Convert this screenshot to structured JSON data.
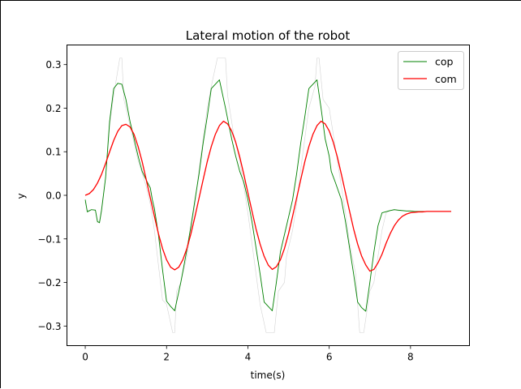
{
  "chart_data": {
    "type": "line",
    "title": "Lateral motion of the robot",
    "xlabel": "time(s)",
    "ylabel": "y",
    "xlim": [
      -0.45,
      9.45
    ],
    "ylim": [
      -0.345,
      0.345
    ],
    "xticks": [
      0,
      2,
      4,
      6,
      8
    ],
    "xtick_labels": [
      "0",
      "2",
      "4",
      "6",
      "8"
    ],
    "yticks": [
      -0.3,
      -0.2,
      -0.1,
      0.0,
      0.1,
      0.2,
      0.3
    ],
    "ytick_labels": [
      "−0.3",
      "−0.2",
      "−0.1",
      "0.0",
      "0.1",
      "0.2",
      "0.3"
    ],
    "grid": false,
    "legend_position": "top-right",
    "series": [
      {
        "name": "cop",
        "color": "#008000",
        "x": [
          0,
          0.05,
          0.15,
          0.25,
          0.3,
          0.35,
          0.4,
          0.5,
          0.6,
          0.7,
          0.8,
          0.9,
          1.0,
          1.1,
          1.2,
          1.3,
          1.4,
          1.5,
          1.6,
          1.65,
          1.7,
          1.8,
          1.9,
          2.0,
          2.1,
          2.2,
          2.35,
          2.5,
          2.6,
          2.7,
          2.8,
          2.9,
          3.0,
          3.1,
          3.2,
          3.3,
          3.45,
          3.6,
          3.7,
          3.8,
          3.9,
          4.0,
          4.1,
          4.2,
          4.3,
          4.4,
          4.5,
          4.6,
          4.7,
          4.8,
          4.95,
          5.1,
          5.2,
          5.3,
          5.4,
          5.5,
          5.6,
          5.7,
          5.8,
          5.9,
          6.0,
          6.05,
          6.15,
          6.3,
          6.4,
          6.5,
          6.6,
          6.7,
          6.8,
          6.9,
          7.0,
          7.1,
          7.2,
          7.3,
          7.5,
          7.6,
          7.7,
          7.8,
          7.9,
          8.0,
          8.1,
          8.2,
          8.4,
          8.6,
          8.8,
          9.0
        ],
        "y": [
          -0.01,
          -0.038,
          -0.033,
          -0.034,
          -0.06,
          -0.063,
          -0.035,
          0.04,
          0.17,
          0.245,
          0.257,
          0.255,
          0.22,
          0.17,
          0.13,
          0.09,
          0.055,
          0.035,
          0.017,
          -0.01,
          -0.03,
          -0.09,
          -0.17,
          -0.243,
          -0.255,
          -0.265,
          -0.2,
          -0.125,
          -0.07,
          -0.01,
          0.05,
          0.12,
          0.18,
          0.245,
          0.255,
          0.265,
          0.2,
          0.13,
          0.09,
          0.055,
          0.03,
          -0.01,
          -0.06,
          -0.12,
          -0.18,
          -0.245,
          -0.255,
          -0.265,
          -0.2,
          -0.13,
          -0.07,
          -0.01,
          0.05,
          0.12,
          0.18,
          0.245,
          0.255,
          0.265,
          0.2,
          0.13,
          0.09,
          0.055,
          0.03,
          -0.01,
          -0.06,
          -0.12,
          -0.18,
          -0.245,
          -0.258,
          -0.266,
          -0.2,
          -0.13,
          -0.07,
          -0.04,
          -0.035,
          -0.033,
          -0.034,
          -0.035,
          -0.036,
          -0.036,
          -0.037,
          -0.037,
          -0.037,
          -0.037,
          -0.037,
          -0.037
        ]
      },
      {
        "name": "com",
        "color": "#ff0000",
        "x": [
          0,
          0.1,
          0.2,
          0.3,
          0.4,
          0.5,
          0.6,
          0.7,
          0.8,
          0.9,
          1.0,
          1.1,
          1.2,
          1.3,
          1.4,
          1.5,
          1.6,
          1.7,
          1.8,
          1.9,
          2.0,
          2.1,
          2.2,
          2.3,
          2.4,
          2.5,
          2.6,
          2.7,
          2.8,
          2.9,
          3.0,
          3.1,
          3.2,
          3.3,
          3.4,
          3.5,
          3.6,
          3.7,
          3.8,
          3.9,
          4.0,
          4.1,
          4.2,
          4.3,
          4.4,
          4.5,
          4.6,
          4.7,
          4.8,
          4.9,
          5.0,
          5.1,
          5.2,
          5.3,
          5.4,
          5.5,
          5.6,
          5.7,
          5.8,
          5.9,
          6.0,
          6.1,
          6.2,
          6.3,
          6.4,
          6.5,
          6.6,
          6.7,
          6.8,
          6.9,
          7.0,
          7.1,
          7.2,
          7.3,
          7.4,
          7.5,
          7.6,
          7.7,
          7.8,
          7.9,
          8.0,
          8.1,
          8.2,
          8.3,
          8.4,
          8.5,
          8.6,
          8.7,
          8.8,
          8.9,
          9.0
        ],
        "y": [
          0.0,
          0.004,
          0.013,
          0.028,
          0.048,
          0.073,
          0.1,
          0.126,
          0.147,
          0.16,
          0.163,
          0.157,
          0.14,
          0.112,
          0.077,
          0.036,
          -0.006,
          -0.048,
          -0.088,
          -0.122,
          -0.148,
          -0.165,
          -0.171,
          -0.165,
          -0.148,
          -0.122,
          -0.088,
          -0.048,
          -0.006,
          0.036,
          0.077,
          0.112,
          0.14,
          0.16,
          0.17,
          0.164,
          0.148,
          0.122,
          0.088,
          0.048,
          0.006,
          -0.036,
          -0.077,
          -0.112,
          -0.14,
          -0.16,
          -0.17,
          -0.164,
          -0.148,
          -0.122,
          -0.088,
          -0.048,
          -0.006,
          0.036,
          0.077,
          0.112,
          0.14,
          0.16,
          0.17,
          0.164,
          0.148,
          0.122,
          0.088,
          0.048,
          0.006,
          -0.036,
          -0.077,
          -0.112,
          -0.14,
          -0.16,
          -0.174,
          -0.17,
          -0.155,
          -0.135,
          -0.11,
          -0.088,
          -0.07,
          -0.057,
          -0.048,
          -0.043,
          -0.04,
          -0.039,
          -0.038,
          -0.038,
          -0.037,
          -0.037,
          -0.037,
          -0.037,
          -0.037,
          -0.037,
          -0.037
        ]
      },
      {
        "color": "#d3d3d3",
        "x": [
          0,
          0.05,
          0.15,
          0.25,
          0.3,
          0.35,
          0.4,
          0.5,
          0.6,
          0.7,
          0.85,
          0.9,
          0.95,
          1.0,
          1.1,
          1.2,
          1.3,
          1.4,
          1.5,
          1.6,
          1.7,
          1.8,
          1.9,
          2.0,
          2.15,
          2.2,
          2.25,
          2.35,
          2.5,
          2.6,
          2.7,
          2.8,
          2.9,
          3.0,
          3.1,
          3.25,
          3.45,
          3.5,
          3.55,
          3.65,
          3.8,
          3.9,
          4.0,
          4.1,
          4.2,
          4.3,
          4.45,
          4.65,
          4.75,
          4.9,
          4.95,
          5.1,
          5.2,
          5.3,
          5.4,
          5.5,
          5.65,
          5.7,
          5.75,
          5.85,
          6.0,
          6.1,
          6.2,
          6.3,
          6.4,
          6.5,
          6.65,
          6.7,
          6.75,
          6.85,
          7.0,
          7.1,
          7.2,
          7.3,
          7.4,
          7.5,
          7.6,
          7.7,
          7.8,
          8.0,
          8.4,
          8.8,
          9.0
        ],
        "y": [
          -0.015,
          -0.035,
          -0.033,
          -0.033,
          -0.063,
          -0.06,
          -0.03,
          0.04,
          0.16,
          0.23,
          0.315,
          0.315,
          0.22,
          0.2,
          0.16,
          0.12,
          0.08,
          0.05,
          0.02,
          -0.02,
          -0.08,
          -0.16,
          -0.24,
          -0.25,
          -0.315,
          -0.315,
          -0.22,
          -0.2,
          -0.14,
          -0.08,
          -0.02,
          0.06,
          0.13,
          0.2,
          0.25,
          0.315,
          0.315,
          0.23,
          0.2,
          0.14,
          0.08,
          0.02,
          -0.04,
          -0.11,
          -0.18,
          -0.25,
          -0.315,
          -0.315,
          -0.22,
          -0.2,
          -0.14,
          -0.08,
          -0.02,
          0.06,
          0.13,
          0.2,
          0.25,
          0.315,
          0.315,
          0.22,
          0.2,
          0.14,
          0.08,
          0.02,
          -0.04,
          -0.11,
          -0.18,
          -0.25,
          -0.315,
          -0.315,
          -0.22,
          -0.2,
          -0.14,
          -0.08,
          -0.04,
          -0.035,
          -0.034,
          -0.035,
          -0.036,
          -0.037,
          -0.037,
          -0.037,
          -0.037
        ]
      }
    ]
  }
}
